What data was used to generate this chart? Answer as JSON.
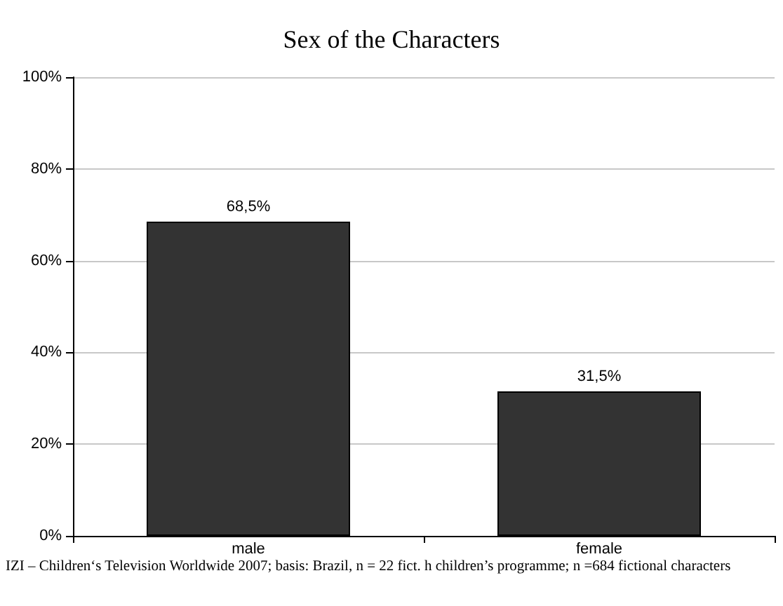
{
  "chart_data": {
    "type": "bar",
    "title": "Sex of the Characters",
    "categories": [
      "male",
      "female"
    ],
    "values": [
      68.5,
      31.5
    ],
    "value_labels": [
      "68,5%",
      "31,5%"
    ],
    "color": "#333333",
    "ylim": [
      0,
      100
    ],
    "yticks": [
      {
        "value": 0,
        "label": "0%"
      },
      {
        "value": 20,
        "label": "20%"
      },
      {
        "value": 40,
        "label": "40%"
      },
      {
        "value": 60,
        "label": "60%"
      },
      {
        "value": 80,
        "label": "80%"
      },
      {
        "value": 100,
        "label": "100%"
      }
    ],
    "grid": "y",
    "annotations": [
      "IZI – Children‘s Television Worldwide 2007; basis: Brazil, n = 22 fict. h children’s programme; n =684 fictional characters"
    ]
  }
}
